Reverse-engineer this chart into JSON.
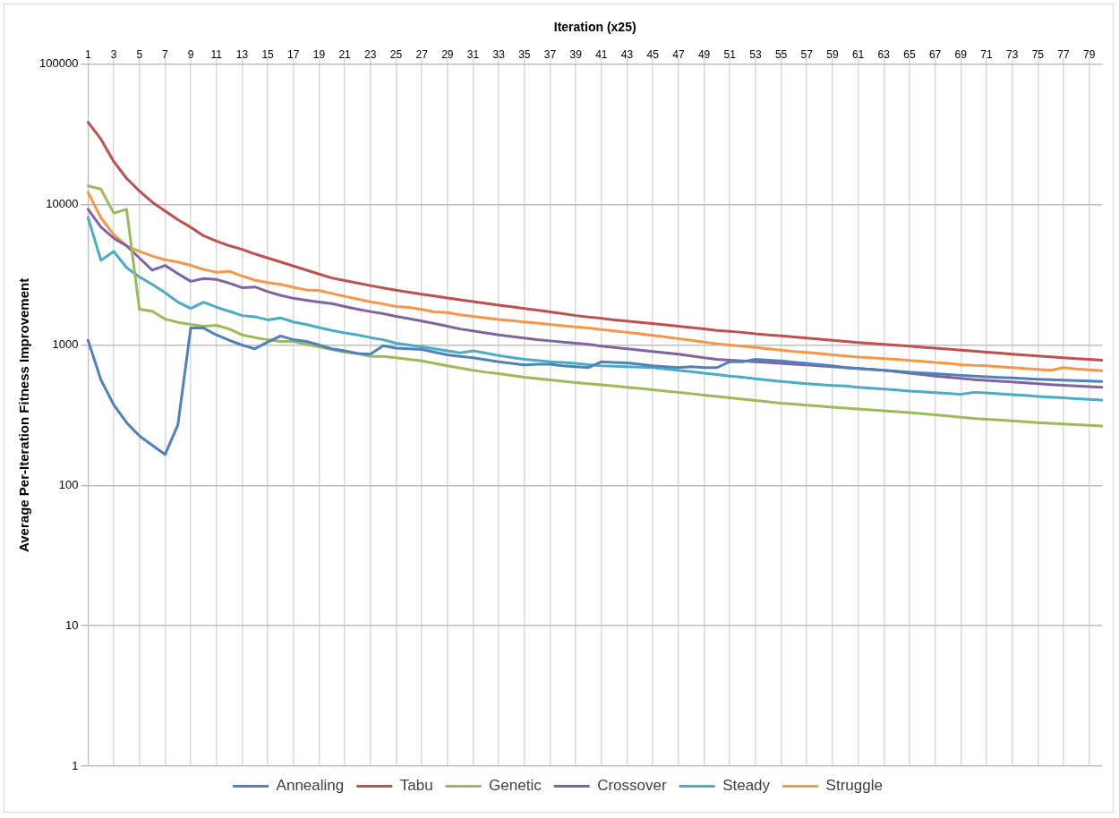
{
  "chart_data": {
    "type": "line",
    "xlabel": "Iteration (x25)",
    "ylabel": "Average Per-Iteration Fitness Improvement",
    "categories": [
      "1",
      null,
      "3",
      null,
      "5",
      null,
      "7",
      null,
      "9",
      null,
      "11",
      null,
      "13",
      null,
      "15",
      null,
      "17",
      null,
      "19",
      null,
      "21",
      null,
      "23",
      null,
      "25",
      null,
      "27",
      null,
      "29",
      null,
      "31",
      null,
      "33",
      null,
      "35",
      null,
      "37",
      null,
      "39",
      null,
      "41",
      null,
      "43",
      null,
      "45",
      null,
      "47",
      null,
      "49",
      null,
      "51",
      null,
      "53",
      null,
      "55",
      null,
      "57",
      null,
      "59",
      null,
      "61",
      null,
      "63",
      null,
      "65",
      null,
      "67",
      null,
      "69",
      null,
      "71",
      null,
      "73",
      null,
      "75",
      null,
      "77",
      null,
      "79",
      null
    ],
    "series": [
      {
        "name": "Annealing",
        "color": "#4f81bd",
        "values": [
          1080,
          565,
          375,
          280,
          225,
          193,
          166,
          270,
          1320,
          1320,
          1180,
          1080,
          1000,
          940,
          1050,
          1160,
          1090,
          1060,
          1000,
          940,
          910,
          870,
          860,
          990,
          950,
          940,
          930,
          890,
          850,
          830,
          810,
          785,
          760,
          740,
          720,
          730,
          730,
          710,
          700,
          690,
          760,
          752,
          745,
          728,
          710,
          700,
          690,
          700,
          690,
          690,
          760,
          760,
          790,
          780,
          770,
          755,
          740,
          725,
          710,
          690,
          680,
          670,
          660,
          650,
          640,
          632,
          624,
          616,
          608,
          600,
          594,
          588,
          582,
          576,
          570,
          566,
          562,
          558,
          554,
          550
        ]
      },
      {
        "name": "Tabu",
        "color": "#c0504d",
        "values": [
          38600,
          29300,
          20300,
          15400,
          12500,
          10400,
          9000,
          7800,
          6900,
          6000,
          5500,
          5100,
          4800,
          4450,
          4170,
          3900,
          3650,
          3420,
          3200,
          3000,
          2880,
          2760,
          2650,
          2550,
          2460,
          2380,
          2300,
          2230,
          2160,
          2100,
          2040,
          1980,
          1920,
          1870,
          1820,
          1770,
          1720,
          1670,
          1620,
          1580,
          1550,
          1510,
          1480,
          1450,
          1420,
          1390,
          1360,
          1330,
          1300,
          1270,
          1250,
          1230,
          1200,
          1180,
          1160,
          1140,
          1120,
          1100,
          1080,
          1060,
          1040,
          1025,
          1010,
          995,
          980,
          965,
          950,
          935,
          920,
          905,
          890,
          875,
          860,
          848,
          836,
          824,
          812,
          800,
          790,
          780
        ]
      },
      {
        "name": "Genetic",
        "color": "#9bbb59",
        "values": [
          13600,
          12900,
          8700,
          9260,
          1800,
          1740,
          1530,
          1450,
          1400,
          1360,
          1380,
          1300,
          1180,
          1130,
          1090,
          1060,
          1060,
          1010,
          970,
          930,
          890,
          870,
          830,
          830,
          810,
          790,
          770,
          740,
          710,
          685,
          660,
          640,
          625,
          607,
          590,
          577,
          564,
          552,
          540,
          530,
          520,
          510,
          500,
          490,
          480,
          470,
          460,
          450,
          440,
          430,
          420,
          411,
          402,
          393,
          385,
          379,
          373,
          367,
          361,
          355,
          350,
          345,
          340,
          335,
          330,
          324,
          318,
          312,
          306,
          300,
          296,
          292,
          288,
          284,
          280,
          277,
          274,
          271,
          268,
          265
        ]
      },
      {
        "name": "Crossover",
        "color": "#8064a2",
        "values": [
          9260,
          6920,
          5760,
          5090,
          4170,
          3410,
          3690,
          3220,
          2840,
          2970,
          2930,
          2760,
          2560,
          2590,
          2400,
          2260,
          2150,
          2080,
          2020,
          1970,
          1880,
          1800,
          1730,
          1670,
          1600,
          1540,
          1480,
          1420,
          1360,
          1300,
          1260,
          1220,
          1180,
          1150,
          1120,
          1090,
          1070,
          1050,
          1030,
          1010,
          980,
          960,
          940,
          920,
          900,
          880,
          860,
          835,
          810,
          790,
          780,
          770,
          760,
          750,
          740,
          730,
          720,
          710,
          700,
          690,
          680,
          670,
          660,
          645,
          630,
          615,
          600,
          590,
          578,
          567,
          560,
          552,
          545,
          538,
          530,
          523,
          517,
          511,
          505,
          500
        ]
      },
      {
        "name": "Steady",
        "color": "#4bacc6",
        "values": [
          8070,
          4010,
          4640,
          3560,
          3050,
          2700,
          2360,
          2020,
          1820,
          2020,
          1860,
          1740,
          1620,
          1590,
          1510,
          1560,
          1460,
          1400,
          1330,
          1270,
          1220,
          1180,
          1130,
          1090,
          1030,
          1000,
          970,
          940,
          910,
          880,
          910,
          875,
          840,
          815,
          790,
          775,
          760,
          750,
          740,
          725,
          710,
          705,
          700,
          695,
          690,
          675,
          660,
          645,
          630,
          615,
          600,
          590,
          575,
          562,
          550,
          540,
          530,
          522,
          515,
          510,
          500,
          492,
          485,
          478,
          470,
          464,
          458,
          452,
          445,
          460,
          455,
          449,
          443,
          437,
          430,
          425,
          420,
          415,
          410,
          405
        ]
      },
      {
        "name": "Struggle",
        "color": "#f79646",
        "values": [
          12200,
          8070,
          6120,
          5090,
          4640,
          4300,
          4050,
          3900,
          3690,
          3450,
          3300,
          3350,
          3100,
          2900,
          2780,
          2700,
          2580,
          2470,
          2450,
          2330,
          2220,
          2120,
          2030,
          1960,
          1880,
          1850,
          1790,
          1720,
          1700,
          1640,
          1600,
          1560,
          1520,
          1490,
          1460,
          1430,
          1400,
          1370,
          1345,
          1320,
          1290,
          1260,
          1230,
          1200,
          1170,
          1140,
          1110,
          1080,
          1050,
          1020,
          1000,
          980,
          960,
          940,
          920,
          900,
          885,
          870,
          850,
          835,
          820,
          810,
          800,
          790,
          775,
          765,
          750,
          740,
          725,
          715,
          710,
          700,
          690,
          680,
          670,
          660,
          690,
          675,
          665,
          655
        ]
      }
    ],
    "log": "y",
    "ylim": [
      1,
      100000
    ],
    "yticks": [
      1,
      10,
      100,
      1000,
      10000,
      100000
    ],
    "grid": true,
    "legend": "bottom",
    "marker": "none",
    "line_style": "solid"
  }
}
